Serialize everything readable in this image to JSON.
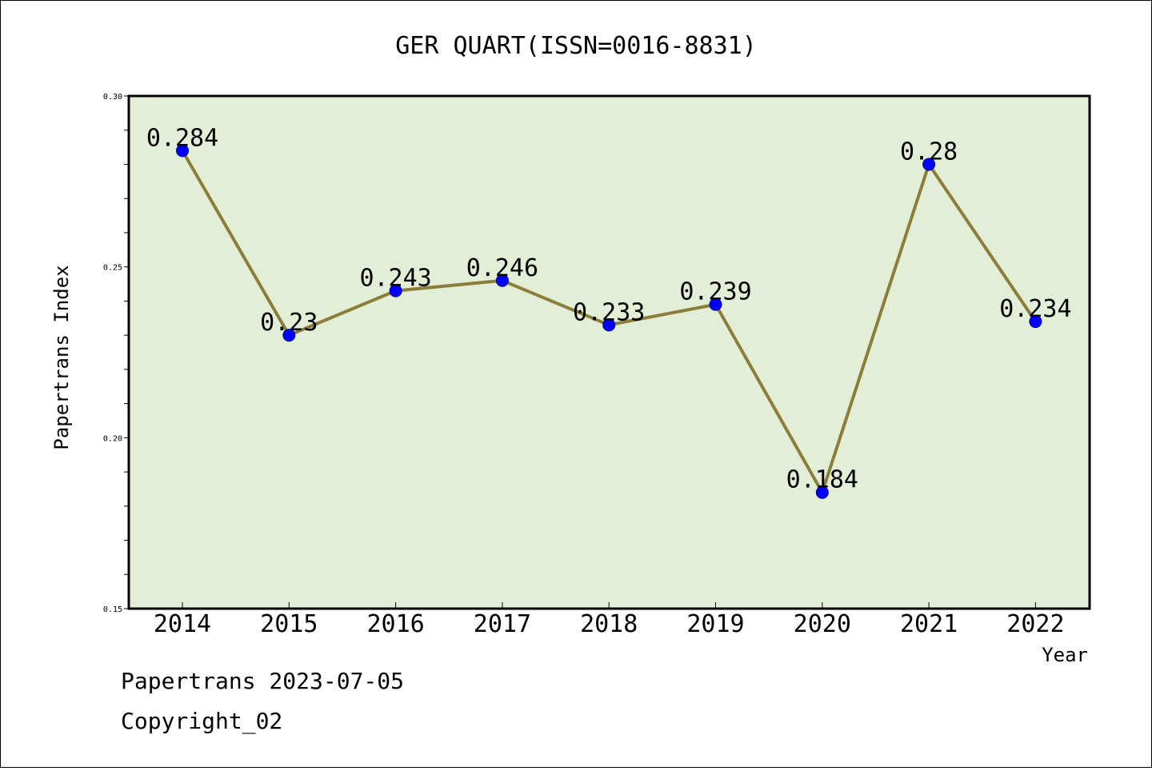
{
  "chart_data": {
    "type": "line",
    "title": "GER QUART(ISSN=0016-8831)",
    "xlabel": "Year",
    "ylabel": "Papertrans Index",
    "categories": [
      "2014",
      "2015",
      "2016",
      "2017",
      "2018",
      "2019",
      "2020",
      "2021",
      "2022"
    ],
    "values": [
      0.284,
      0.23,
      0.243,
      0.246,
      0.233,
      0.239,
      0.184,
      0.28,
      0.234
    ],
    "data_labels": [
      "0.284",
      "0.23",
      "0.243",
      "0.246",
      "0.233",
      "0.239",
      "0.184",
      "0.28",
      "0.234"
    ],
    "ylim": [
      0.15,
      0.3
    ],
    "yticks": [
      "0.15",
      "0.20",
      "0.25",
      "0.30"
    ],
    "yticks_values": [
      0.15,
      0.2,
      0.25,
      0.3
    ],
    "y_minor_step": 0.01,
    "grid": false,
    "colors": {
      "plot_background": "#e2efd6",
      "line": "#8b7d3a",
      "marker": "#0000ff",
      "marker_edge": "#00008b"
    }
  },
  "footer": {
    "line1": "Papertrans 2023-07-05",
    "line2": "Copyright_02"
  }
}
